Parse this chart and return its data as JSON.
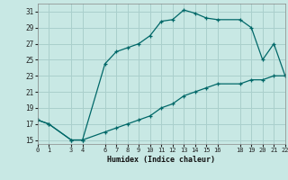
{
  "xlabel": "Humidex (Indice chaleur)",
  "background_color": "#c8e8e4",
  "grid_color": "#aacfcc",
  "line_color": "#006868",
  "curve1_x": [
    0,
    1,
    3,
    4,
    6,
    7,
    8,
    9,
    10,
    11,
    12,
    13,
    14,
    15,
    16,
    18,
    19,
    20,
    21,
    22
  ],
  "curve1_y": [
    17.5,
    17.0,
    15.0,
    15.0,
    24.5,
    26.0,
    26.5,
    27.0,
    28.0,
    29.8,
    30.0,
    31.2,
    30.8,
    30.2,
    30.0,
    30.0,
    29.0,
    25.0,
    27.0,
    23.0
  ],
  "curve2_x": [
    0,
    1,
    3,
    4,
    6,
    7,
    8,
    9,
    10,
    11,
    12,
    13,
    14,
    15,
    16,
    18,
    19,
    20,
    21,
    22
  ],
  "curve2_y": [
    17.5,
    17.0,
    15.0,
    15.0,
    16.0,
    16.5,
    17.0,
    17.5,
    18.0,
    19.0,
    19.5,
    20.5,
    21.0,
    21.5,
    22.0,
    22.0,
    22.5,
    22.5,
    23.0,
    23.0
  ],
  "xlim": [
    0,
    22
  ],
  "ylim": [
    14.5,
    32
  ],
  "yticks": [
    15,
    17,
    19,
    21,
    23,
    25,
    27,
    29,
    31
  ],
  "xticks": [
    0,
    1,
    3,
    4,
    6,
    7,
    8,
    9,
    10,
    11,
    12,
    13,
    14,
    15,
    16,
    18,
    19,
    20,
    21,
    22
  ],
  "xtick_labels": [
    "0",
    "1",
    "3",
    "4",
    "6",
    "7",
    "8",
    "9",
    "10",
    "11",
    "12",
    "13",
    "14",
    "15",
    "16",
    "18",
    "19",
    "20",
    "21",
    "22"
  ]
}
